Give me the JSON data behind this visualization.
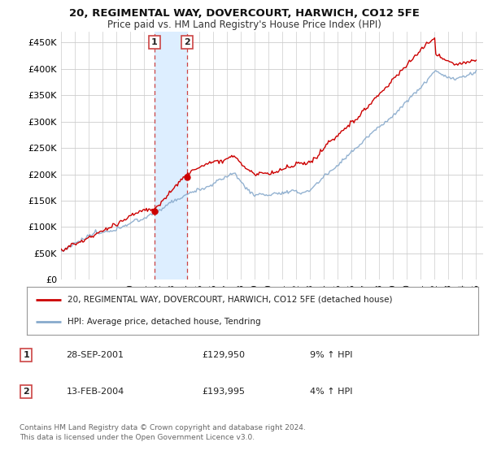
{
  "title": "20, REGIMENTAL WAY, DOVERCOURT, HARWICH, CO12 5FE",
  "subtitle": "Price paid vs. HM Land Registry's House Price Index (HPI)",
  "ylabel_ticks": [
    "£0",
    "£50K",
    "£100K",
    "£150K",
    "£200K",
    "£250K",
    "£300K",
    "£350K",
    "£400K",
    "£450K"
  ],
  "ytick_values": [
    0,
    50000,
    100000,
    150000,
    200000,
    250000,
    300000,
    350000,
    400000,
    450000
  ],
  "ylim": [
    0,
    470000
  ],
  "xlim_start": 1995.0,
  "xlim_end": 2025.5,
  "transaction1": {
    "date": 2001.75,
    "price": 129950,
    "label": "1"
  },
  "transaction2": {
    "date": 2004.1,
    "price": 193995,
    "label": "2"
  },
  "shade1_start": 2001.75,
  "shade1_end": 2004.1,
  "legend_property": "20, REGIMENTAL WAY, DOVERCOURT, HARWICH, CO12 5FE (detached house)",
  "legend_hpi": "HPI: Average price, detached house, Tendring",
  "table_rows": [
    {
      "num": "1",
      "date": "28-SEP-2001",
      "price": "£129,950",
      "hpi": "9% ↑ HPI"
    },
    {
      "num": "2",
      "date": "13-FEB-2004",
      "price": "£193,995",
      "hpi": "4% ↑ HPI"
    }
  ],
  "footnote": "Contains HM Land Registry data © Crown copyright and database right 2024.\nThis data is licensed under the Open Government Licence v3.0.",
  "color_red": "#cc0000",
  "color_blue": "#88aacc",
  "color_shade": "#ddeeff",
  "background_color": "#ffffff",
  "grid_color": "#cccccc"
}
